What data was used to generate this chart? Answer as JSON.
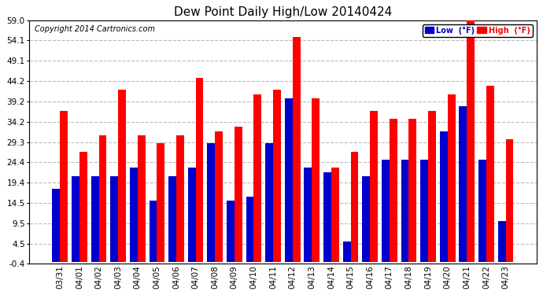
{
  "title": "Dew Point Daily High/Low 20140424",
  "copyright": "Copyright 2014 Cartronics.com",
  "legend_low": "Low  (°F)",
  "legend_high": "High  (°F)",
  "dates": [
    "03/31",
    "04/01",
    "04/02",
    "04/03",
    "04/04",
    "04/05",
    "04/06",
    "04/07",
    "04/08",
    "04/09",
    "04/10",
    "04/11",
    "04/12",
    "04/13",
    "04/14",
    "04/15",
    "04/16",
    "04/17",
    "04/18",
    "04/19",
    "04/20",
    "04/21",
    "04/22",
    "04/23"
  ],
  "low_values": [
    18,
    21,
    21,
    21,
    23,
    15,
    21,
    23,
    29,
    15,
    16,
    29,
    40,
    23,
    22,
    5,
    21,
    25,
    25,
    25,
    32,
    38,
    25,
    10
  ],
  "high_values": [
    37,
    27,
    31,
    42,
    31,
    29,
    31,
    45,
    32,
    33,
    41,
    42,
    55,
    40,
    23,
    27,
    37,
    35,
    35,
    37,
    41,
    59,
    43,
    30
  ],
  "ylim": [
    -0.4,
    59.0
  ],
  "yticks": [
    -0.4,
    4.5,
    9.5,
    14.5,
    19.4,
    24.4,
    29.3,
    34.2,
    39.2,
    44.2,
    49.1,
    54.1,
    59.0
  ],
  "ytick_labels": [
    "-0.4",
    "4.5",
    "9.5",
    "14.5",
    "19.4",
    "24.4",
    "29.3",
    "34.2",
    "39.2",
    "44.2",
    "49.1",
    "54.1",
    "59.0"
  ],
  "bar_width": 0.4,
  "low_color": "#0000cc",
  "high_color": "#ff0000",
  "bg_color": "#ffffff",
  "grid_color": "#bbbbbb",
  "title_fontsize": 11,
  "tick_fontsize": 7.5,
  "copyright_fontsize": 7
}
